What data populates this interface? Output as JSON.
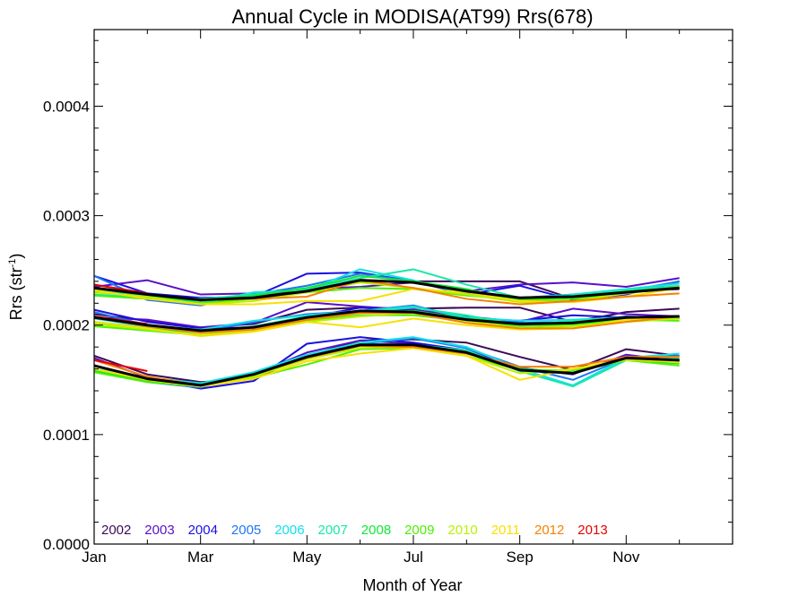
{
  "chart_data": {
    "type": "line",
    "title": "Annual Cycle in MODISA(AT99) Rrs(678)",
    "xlabel": "Month of Year",
    "ylabel_main": "Rrs (str",
    "ylabel_sup": "-1",
    "ylabel_close": ")",
    "xlim": [
      1,
      13
    ],
    "ylim": [
      0.0,
      0.00047
    ],
    "x_ticks": [
      {
        "value": 1,
        "label": "Jan"
      },
      {
        "value": 3,
        "label": "Mar"
      },
      {
        "value": 5,
        "label": "May"
      },
      {
        "value": 7,
        "label": "Jul"
      },
      {
        "value": 9,
        "label": "Sep"
      },
      {
        "value": 11,
        "label": "Nov"
      }
    ],
    "y_ticks": [
      {
        "value": 0.0,
        "label": "0.0000"
      },
      {
        "value": 0.0001,
        "label": "0.0001"
      },
      {
        "value": 0.0002,
        "label": "0.0002"
      },
      {
        "value": 0.0003,
        "label": "0.0003"
      },
      {
        "value": 0.0004,
        "label": "0.0004"
      }
    ],
    "x": [
      1,
      2,
      3,
      4,
      5,
      6,
      7,
      8,
      9,
      10,
      11,
      12
    ],
    "legend_placement": "bottom-left",
    "series": [
      {
        "name": "2002",
        "color": "#3b0a57",
        "upper": [
          0.000237,
          0.000229,
          0.000222,
          0.000226,
          0.000233,
          0.00024,
          0.00024,
          0.00024,
          0.00024,
          0.000224,
          0.00023,
          0.000233
        ],
        "middle": [
          0.00021,
          0.000204,
          0.000198,
          0.000201,
          0.000214,
          0.000216,
          0.000215,
          0.000216,
          0.000216,
          0.000203,
          0.000212,
          0.000215
        ],
        "lower": [
          0.000172,
          0.000155,
          0.000148,
          0.000151,
          0.000172,
          0.000186,
          0.000187,
          0.000184,
          0.000171,
          0.000159,
          0.000178,
          0.000172
        ]
      },
      {
        "name": "2003",
        "color": "#5a0fc8",
        "upper": [
          0.000235,
          0.000241,
          0.000228,
          0.000229,
          0.000233,
          0.000235,
          0.000239,
          0.000231,
          0.000237,
          0.000239,
          0.000235,
          0.000243
        ],
        "middle": [
          0.000207,
          0.000205,
          0.000198,
          0.000202,
          0.000221,
          0.000217,
          0.000214,
          0.000208,
          0.000203,
          0.000215,
          0.00021,
          0.000208
        ],
        "lower": [
          0.00017,
          0.000152,
          0.000147,
          0.000155,
          0.000175,
          0.000186,
          0.000183,
          0.000177,
          0.000161,
          0.000155,
          0.000173,
          0.000167
        ]
      },
      {
        "name": "2004",
        "color": "#1a10e0",
        "upper": [
          0.000245,
          0.000229,
          0.000225,
          0.000226,
          0.000247,
          0.000248,
          0.00024,
          0.000228,
          0.000236,
          0.000223,
          0.000228,
          0.00024
        ],
        "middle": [
          0.000214,
          0.000203,
          0.000197,
          0.000198,
          0.000207,
          0.000216,
          0.000213,
          0.000206,
          0.000204,
          0.000209,
          0.000207,
          0.000207
        ],
        "lower": [
          0.00016,
          0.000151,
          0.000142,
          0.000149,
          0.000183,
          0.000189,
          0.000184,
          0.000177,
          0.000159,
          0.000156,
          0.000171,
          0.000168
        ]
      },
      {
        "name": "2005",
        "color": "#1e78f0",
        "upper": [
          0.000245,
          0.000223,
          0.000218,
          0.000228,
          0.000236,
          0.000247,
          0.00024,
          0.00023,
          0.000225,
          0.000228,
          0.000231,
          0.00024
        ],
        "middle": [
          0.000212,
          0.0002,
          0.000194,
          0.000203,
          0.00021,
          0.000213,
          0.000218,
          0.000206,
          0.000202,
          0.000203,
          0.000208,
          0.000206
        ],
        "lower": [
          0.000158,
          0.000148,
          0.000143,
          0.000157,
          0.000172,
          0.000183,
          0.000188,
          0.000179,
          0.000162,
          0.00015,
          0.00017,
          0.000172
        ]
      },
      {
        "name": "2006",
        "color": "#12e0e8",
        "upper": [
          0.000233,
          0.000227,
          0.00022,
          0.00023,
          0.000232,
          0.000251,
          0.000241,
          0.000228,
          0.000224,
          0.000228,
          0.000233,
          0.000238
        ],
        "middle": [
          0.000206,
          0.000199,
          0.000196,
          0.000204,
          0.000209,
          0.000213,
          0.000217,
          0.000207,
          0.000204,
          0.000205,
          0.000207,
          0.000207
        ],
        "lower": [
          0.00016,
          0.000152,
          0.000147,
          0.000157,
          0.000173,
          0.000184,
          0.000189,
          0.00018,
          0.00016,
          0.000145,
          0.00017,
          0.000174
        ]
      },
      {
        "name": "2007",
        "color": "#18e8a8",
        "upper": [
          0.000228,
          0.000225,
          0.000224,
          0.000228,
          0.000233,
          0.000243,
          0.000251,
          0.000237,
          0.000225,
          0.000227,
          0.000232,
          0.000236
        ],
        "middle": [
          0.000203,
          0.000198,
          0.000194,
          0.000199,
          0.000208,
          0.000212,
          0.000216,
          0.000209,
          0.0002,
          0.000204,
          0.000207,
          0.000206
        ],
        "lower": [
          0.000159,
          0.00015,
          0.000146,
          0.000155,
          0.00017,
          0.000183,
          0.000182,
          0.000177,
          0.000158,
          0.000144,
          0.000168,
          0.00017
        ]
      },
      {
        "name": "2008",
        "color": "#10e838",
        "upper": [
          0.000231,
          0.000226,
          0.000222,
          0.000227,
          0.000234,
          0.000245,
          0.00024,
          0.000233,
          0.000222,
          0.000222,
          0.000231,
          0.000234
        ],
        "middle": [
          0.000201,
          0.000197,
          0.000193,
          0.000198,
          0.000206,
          0.000212,
          0.000213,
          0.000206,
          0.000201,
          0.000201,
          0.000206,
          0.000206
        ],
        "lower": [
          0.000158,
          0.000149,
          0.000144,
          0.000154,
          0.00017,
          0.000181,
          0.000181,
          0.000175,
          0.00016,
          0.000157,
          0.000168,
          0.000165
        ]
      },
      {
        "name": "2009",
        "color": "#4cf000",
        "upper": [
          0.000227,
          0.000224,
          0.00022,
          0.000224,
          0.00023,
          0.000234,
          0.000233,
          0.000227,
          0.000223,
          0.000224,
          0.00023,
          0.000234
        ],
        "middle": [
          0.000199,
          0.000195,
          0.000191,
          0.000196,
          0.000204,
          0.000209,
          0.000209,
          0.000204,
          0.000199,
          0.0002,
          0.000205,
          0.000204
        ],
        "lower": [
          0.000157,
          0.000148,
          0.000144,
          0.000152,
          0.000164,
          0.000178,
          0.000179,
          0.000172,
          0.000159,
          0.000159,
          0.000168,
          0.000163
        ]
      },
      {
        "name": "2010",
        "color": "#b8f000",
        "upper": [
          0.00023,
          0.000226,
          0.000219,
          0.000222,
          0.00023,
          0.000239,
          0.000234,
          0.000228,
          0.000221,
          0.000222,
          0.000229,
          0.000235
        ],
        "middle": [
          0.000201,
          0.000196,
          0.000191,
          0.000195,
          0.000203,
          0.000208,
          0.000211,
          0.000204,
          0.000197,
          0.000199,
          0.000203,
          0.000206
        ],
        "lower": [
          0.00016,
          0.00015,
          0.000144,
          0.000153,
          0.000169,
          0.000179,
          0.00018,
          0.000172,
          0.000156,
          0.00016,
          0.000168,
          0.000167
        ]
      },
      {
        "name": "2011",
        "color": "#f8e000",
        "upper": [
          0.000232,
          0.000224,
          0.000219,
          0.000219,
          0.000222,
          0.000222,
          0.000233,
          0.00023,
          0.000222,
          0.000221,
          0.000226,
          0.000234
        ],
        "middle": [
          0.000203,
          0.000197,
          0.00019,
          0.000194,
          0.000203,
          0.000198,
          0.000206,
          0.0002,
          0.000196,
          0.000197,
          0.000205,
          0.000208
        ],
        "lower": [
          0.00016,
          0.00015,
          0.000144,
          0.000151,
          0.000167,
          0.000174,
          0.000179,
          0.000172,
          0.00015,
          0.00016,
          0.000169,
          0.000166
        ]
      },
      {
        "name": "2012",
        "color": "#f88000",
        "upper": [
          0.000234,
          0.000228,
          0.000223,
          0.000224,
          0.000226,
          0.000241,
          0.000234,
          0.000224,
          0.000219,
          0.000222,
          0.000226,
          0.000229
        ],
        "middle": [
          0.000207,
          0.000199,
          0.000193,
          0.000196,
          0.000205,
          0.000211,
          0.000211,
          0.000202,
          0.000197,
          0.000197,
          0.000203,
          0.000208
        ],
        "lower": [
          0.000168,
          0.000153,
          0.000145,
          0.000155,
          0.00017,
          0.000181,
          0.00018,
          0.000174,
          0.000162,
          0.000162,
          0.000171,
          0.000171
        ]
      },
      {
        "name": "2013",
        "color": "#e80000",
        "upper": [
          0.000237,
          0.000229
        ],
        "middle": [
          0.000208,
          0.000201
        ],
        "lower": [
          0.000168,
          0.000158
        ]
      }
    ],
    "mean": {
      "color": "#000000",
      "upper": [
        0.000234,
        0.000228,
        0.000223,
        0.000225,
        0.000231,
        0.000241,
        0.000239,
        0.000231,
        0.000225,
        0.000226,
        0.00023,
        0.000234
      ],
      "middle": [
        0.000207,
        0.0002,
        0.000195,
        0.000198,
        0.000207,
        0.000213,
        0.000212,
        0.000205,
        0.000201,
        0.000202,
        0.000207,
        0.000208
      ],
      "lower": [
        0.000163,
        0.000151,
        0.000145,
        0.000155,
        0.000171,
        0.000182,
        0.000182,
        0.000175,
        0.000159,
        0.000156,
        0.00017,
        0.000168
      ]
    }
  }
}
